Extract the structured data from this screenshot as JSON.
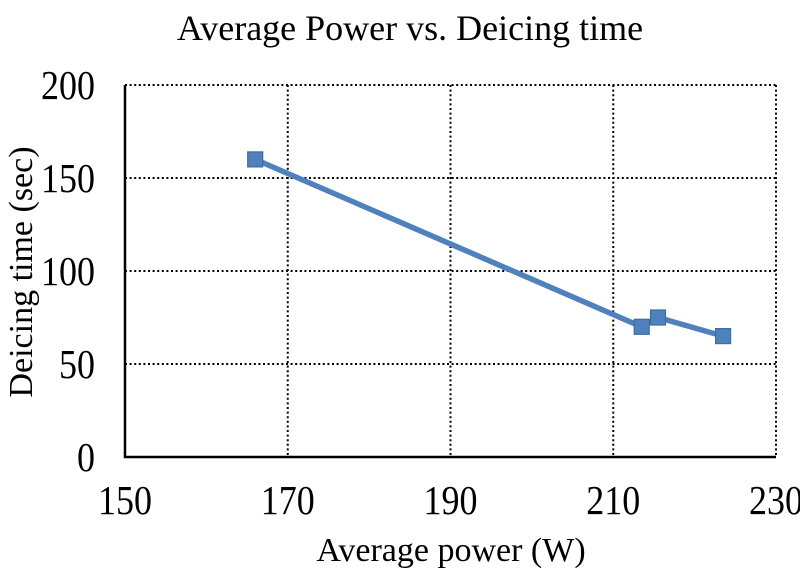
{
  "chart_data": {
    "type": "line",
    "title": "Average Power vs. Deicing time",
    "xlabel": "Average power (W)",
    "ylabel": "Deicing time (sec)",
    "xlim": [
      150,
      230
    ],
    "ylim": [
      0,
      200
    ],
    "xticks": [
      150,
      170,
      190,
      210,
      230
    ],
    "yticks": [
      0,
      50,
      100,
      150,
      200
    ],
    "grid": "dotted",
    "grid_color": "#000000",
    "axis_color": "#000000",
    "legend": "none",
    "series": [
      {
        "name": "Deicing time",
        "color": "#4F81BD",
        "marker": "square",
        "marker_edge_color": "#3E6E9F",
        "points": [
          [
            166,
            160
          ],
          [
            213.5,
            70
          ],
          [
            215.5,
            75
          ],
          [
            223.5,
            65
          ]
        ]
      }
    ]
  }
}
